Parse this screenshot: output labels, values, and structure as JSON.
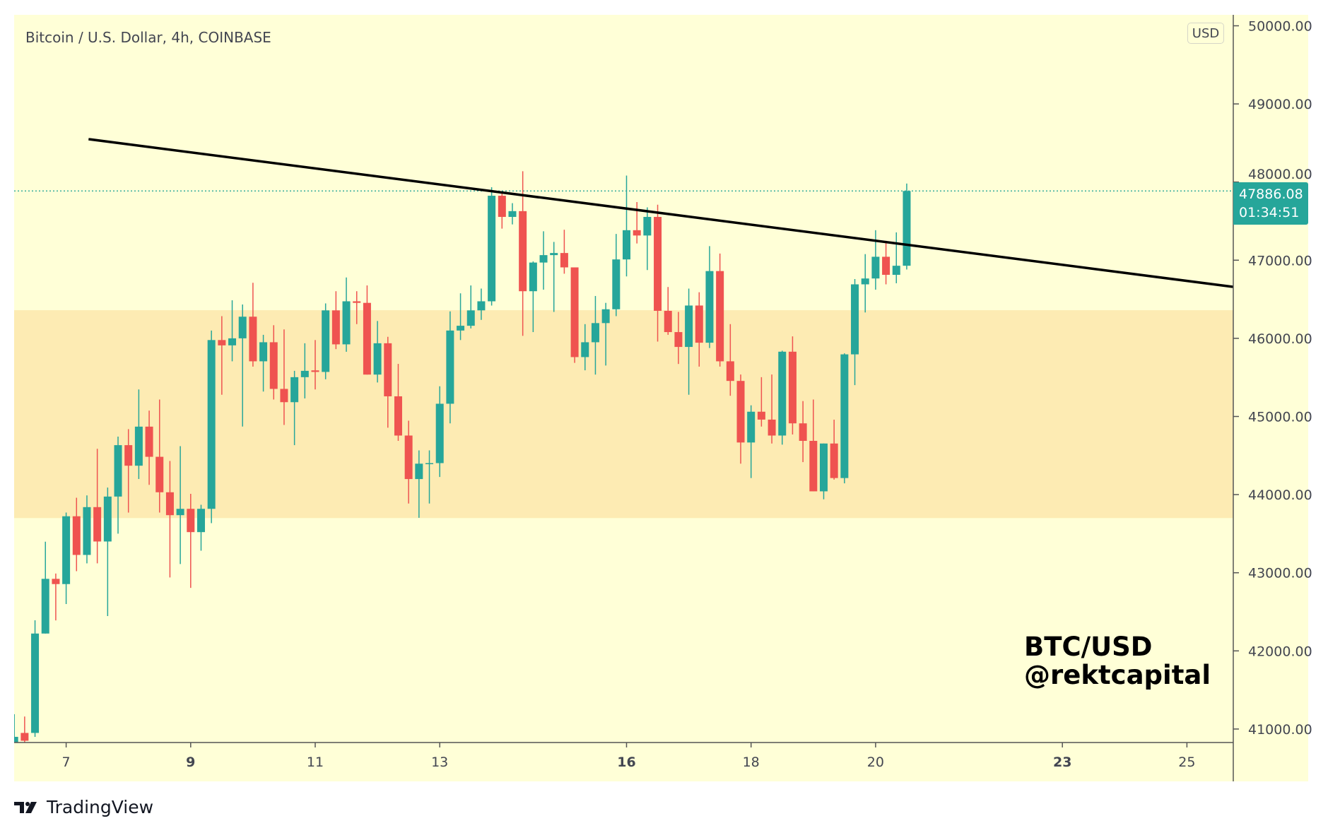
{
  "header": {
    "title": "Bitcoin / U.S. Dollar, 4h, COINBASE",
    "currency_badge": "USD"
  },
  "last_price": {
    "value": "47886.08",
    "countdown": "01:34:51",
    "color": "#26a69a"
  },
  "watermark": {
    "line1": "BTC/USD",
    "line2": "@rektcapital"
  },
  "branding": {
    "logo_text": "TradingView"
  },
  "colors": {
    "background": "#ffffd7",
    "zone": "#fdebb3",
    "up": "#26a69a",
    "down": "#ef5350",
    "trendline": "#000000"
  },
  "chart_data": {
    "type": "candlestick",
    "interval": "4h",
    "title": "Bitcoin / U.S. Dollar, 4h, COINBASE",
    "ylim": [
      40850,
      50050
    ],
    "xlim_days": [
      5.77,
      25.77
    ],
    "y_ticks": [
      "50000.00",
      "49000.00",
      "48000.00",
      "47000.00",
      "46000.00",
      "45000.00",
      "44000.00",
      "43000.00",
      "42000.00",
      "41000.00"
    ],
    "x_ticks": [
      {
        "day": 7,
        "label": "7",
        "bold": false
      },
      {
        "day": 9,
        "label": "9",
        "bold": true
      },
      {
        "day": 11,
        "label": "11",
        "bold": false
      },
      {
        "day": 13,
        "label": "13",
        "bold": false
      },
      {
        "day": 16,
        "label": "16",
        "bold": true
      },
      {
        "day": 18,
        "label": "18",
        "bold": false
      },
      {
        "day": 20,
        "label": "20",
        "bold": false
      },
      {
        "day": 23,
        "label": "23",
        "bold": true
      },
      {
        "day": 25,
        "label": "25",
        "bold": false
      }
    ],
    "first_candle": {
      "day": 6,
      "hour": 4
    },
    "ohlc": [
      [
        40800,
        41190,
        40700,
        40900
      ],
      [
        40950,
        41160,
        40700,
        40850
      ],
      [
        40950,
        42392,
        40900,
        42222
      ],
      [
        42222,
        43397,
        42222,
        42922
      ],
      [
        42922,
        42990,
        42390,
        42855
      ],
      [
        42855,
        43770,
        42600,
        43723
      ],
      [
        43723,
        43960,
        43020,
        43228
      ],
      [
        43228,
        43990,
        43120,
        43840
      ],
      [
        43840,
        44586,
        43120,
        43400
      ],
      [
        43400,
        44090,
        42446,
        43975
      ],
      [
        43975,
        44742,
        43500,
        44633
      ],
      [
        44633,
        44838,
        43770,
        44370
      ],
      [
        44370,
        45346,
        44200,
        44870
      ],
      [
        44870,
        45075,
        44125,
        44484
      ],
      [
        44484,
        45217,
        43770,
        44030
      ],
      [
        44030,
        44430,
        42940,
        43737
      ],
      [
        43737,
        44620,
        43112,
        43818
      ],
      [
        43818,
        44010,
        42806,
        43520
      ],
      [
        43520,
        43870,
        43282,
        43818
      ],
      [
        43818,
        46100,
        43635,
        45978
      ],
      [
        45978,
        46284,
        45278,
        45910
      ],
      [
        45910,
        46487,
        45706,
        46000
      ],
      [
        46000,
        46433,
        44871,
        46277
      ],
      [
        46277,
        46711,
        45638,
        45706
      ],
      [
        45706,
        46045,
        45319,
        45950
      ],
      [
        45950,
        46168,
        45217,
        45353
      ],
      [
        45353,
        46114,
        44891,
        45183
      ],
      [
        45183,
        45584,
        44633,
        45503
      ],
      [
        45503,
        45937,
        45231,
        45584
      ],
      [
        45590,
        45978,
        45346,
        45570
      ],
      [
        45570,
        46447,
        45476,
        46358
      ],
      [
        46358,
        46603,
        45862,
        45923
      ],
      [
        45923,
        46779,
        45828,
        46474
      ],
      [
        46474,
        46603,
        46182,
        46454
      ],
      [
        46454,
        46677,
        45536,
        45536
      ],
      [
        45536,
        46222,
        45435,
        45937
      ],
      [
        45937,
        46019,
        44857,
        45258
      ],
      [
        45258,
        45673,
        44688,
        44756
      ],
      [
        44756,
        44946,
        43886,
        44199
      ],
      [
        44199,
        44566,
        43703,
        44396
      ],
      [
        44396,
        44566,
        43886,
        44403
      ],
      [
        44403,
        45387,
        44226,
        45163
      ],
      [
        45163,
        46345,
        44912,
        46100
      ],
      [
        46100,
        46576,
        45978,
        46161
      ],
      [
        46161,
        46677,
        46127,
        46358
      ],
      [
        46358,
        46637,
        46236,
        46474
      ],
      [
        46474,
        47934,
        46420,
        47825
      ],
      [
        47825,
        47880,
        47404,
        47554
      ],
      [
        47554,
        47730,
        47458,
        47628
      ],
      [
        47628,
        48138,
        46032,
        46603
      ],
      [
        46603,
        46984,
        46080,
        46970
      ],
      [
        46970,
        47370,
        46623,
        47065
      ],
      [
        47065,
        47234,
        46338,
        47092
      ],
      [
        47092,
        47390,
        46827,
        46908
      ],
      [
        46908,
        46908,
        45686,
        45760
      ],
      [
        45760,
        46182,
        45591,
        45950
      ],
      [
        45950,
        46542,
        45536,
        46195
      ],
      [
        46195,
        46454,
        45652,
        46372
      ],
      [
        46372,
        47336,
        46284,
        47010
      ],
      [
        47010,
        48083,
        46793,
        47384
      ],
      [
        47384,
        47744,
        47214,
        47316
      ],
      [
        47316,
        47676,
        46874,
        47554
      ],
      [
        47554,
        47710,
        45958,
        46352
      ],
      [
        46352,
        46657,
        46045,
        46080
      ],
      [
        46080,
        46338,
        45672,
        45890
      ],
      [
        45890,
        46637,
        45278,
        46420
      ],
      [
        46420,
        46590,
        45638,
        45944
      ],
      [
        45944,
        47180,
        45876,
        46861
      ],
      [
        46861,
        47085,
        45638,
        45706
      ],
      [
        45706,
        46182,
        45265,
        45455
      ],
      [
        45455,
        45537,
        44396,
        44667
      ],
      [
        44667,
        45143,
        44212,
        45061
      ],
      [
        45061,
        45503,
        44871,
        44960
      ],
      [
        44960,
        45537,
        44654,
        44756
      ],
      [
        44756,
        45842,
        44640,
        45829
      ],
      [
        45829,
        46025,
        44770,
        44912
      ],
      [
        44912,
        45197,
        44416,
        44688
      ],
      [
        44688,
        45217,
        44042,
        44042
      ],
      [
        44042,
        44654,
        43940,
        44654
      ],
      [
        44654,
        44959,
        44192,
        44212
      ],
      [
        44212,
        45808,
        44144,
        45795
      ],
      [
        45795,
        46759,
        45401,
        46691
      ],
      [
        46691,
        47078,
        46331,
        46766
      ],
      [
        46766,
        47384,
        46623,
        47044
      ],
      [
        47044,
        47248,
        46691,
        46813
      ],
      [
        46813,
        47356,
        46705,
        46929
      ],
      [
        46929,
        47981,
        46881,
        47886.08
      ]
    ],
    "zone": {
      "low": 43700,
      "high": 46360
    },
    "trendline": {
      "start": {
        "day": 7.36,
        "price": 48549
      },
      "end": {
        "day": 25.74,
        "price": 46659
      }
    },
    "last_price_line": 47886.08
  }
}
